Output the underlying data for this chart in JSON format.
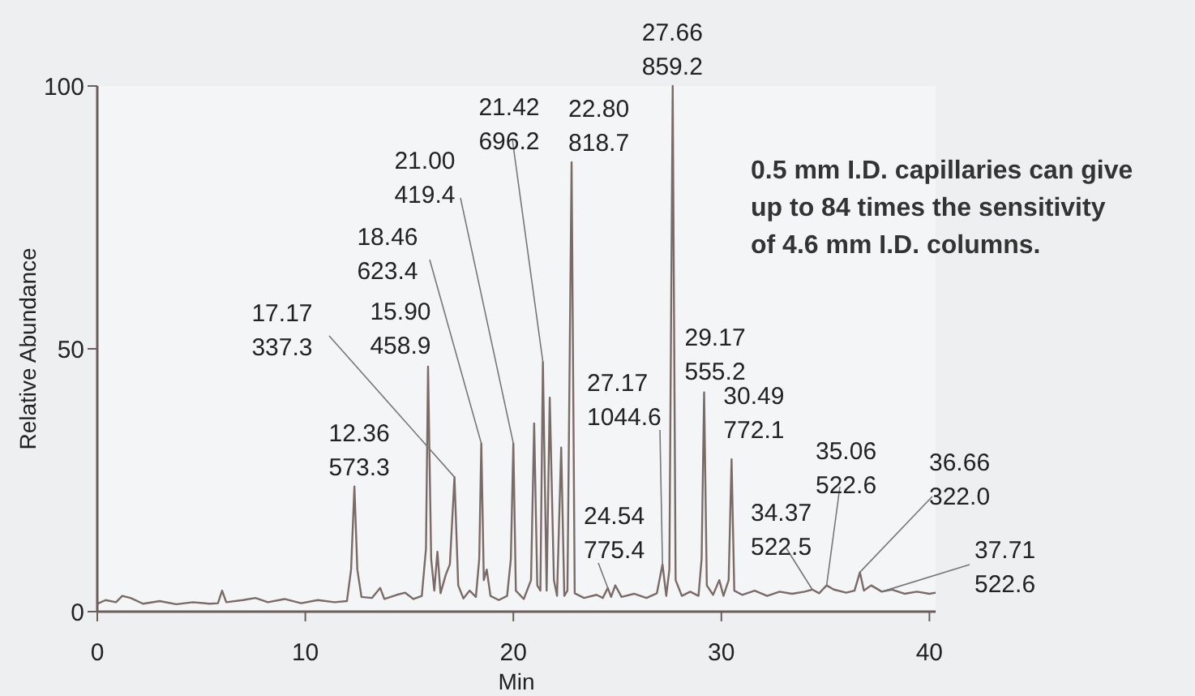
{
  "chart_data": {
    "type": "line",
    "xlabel": "Min",
    "ylabel": "Relative Abundance",
    "xlim": [
      0,
      40.3
    ],
    "xticks": [
      0,
      10,
      20,
      30,
      40
    ],
    "ylim": [
      0,
      100
    ],
    "yticks": [
      0,
      50,
      100
    ],
    "series": [
      {
        "color": "#7a6a68",
        "x": [
          0,
          0.4,
          0.9,
          1.2,
          1.6,
          2.2,
          3,
          3.8,
          4.6,
          5.4,
          5.8,
          6.0,
          6.2,
          7,
          7.6,
          8.2,
          9,
          9.8,
          10.6,
          11.4,
          12.0,
          12.2,
          12.36,
          12.5,
          12.7,
          13.2,
          13.6,
          13.8,
          14.4,
          14.8,
          15.2,
          15.6,
          15.8,
          15.9,
          16.05,
          16.2,
          16.35,
          16.5,
          16.75,
          16.95,
          17.17,
          17.35,
          17.6,
          17.9,
          18.2,
          18.36,
          18.46,
          18.58,
          18.72,
          18.9,
          19.3,
          19.7,
          19.88,
          20.0,
          20.12,
          20.5,
          20.85,
          21.0,
          21.15,
          21.3,
          21.42,
          21.6,
          21.75,
          21.95,
          22.1,
          22.3,
          22.45,
          22.6,
          22.8,
          22.95,
          23.4,
          24.0,
          24.3,
          24.54,
          24.7,
          24.9,
          25.2,
          25.8,
          26.4,
          26.9,
          27.17,
          27.35,
          27.5,
          27.66,
          27.8,
          28.1,
          28.5,
          28.9,
          29.05,
          29.17,
          29.3,
          29.6,
          29.9,
          30.1,
          30.35,
          30.49,
          30.62,
          31.0,
          31.6,
          32.2,
          32.8,
          33.4,
          34.0,
          34.37,
          34.7,
          35.06,
          35.4,
          36.0,
          36.4,
          36.66,
          36.85,
          37.2,
          37.71,
          38.2,
          38.8,
          39.4,
          40.0,
          40.3
        ],
        "values": [
          1.5,
          2.2,
          1.8,
          3.0,
          2.6,
          1.5,
          2.0,
          1.4,
          1.8,
          1.5,
          1.6,
          4.0,
          1.8,
          2.2,
          2.6,
          1.8,
          2.4,
          1.6,
          2.2,
          1.8,
          2.0,
          8,
          23.8,
          8,
          2.8,
          2.6,
          4.5,
          2.4,
          3.2,
          3.6,
          2.4,
          3.0,
          12,
          46.6,
          10,
          4,
          11.4,
          3.5,
          7,
          9,
          25.6,
          5,
          2.5,
          4,
          2.8,
          10,
          32,
          6,
          8,
          3,
          2.2,
          3,
          10,
          32,
          4,
          2.4,
          6,
          35.8,
          5,
          4,
          47.5,
          4,
          40.7,
          6,
          3,
          31.2,
          3,
          4,
          85.5,
          3.5,
          2.6,
          3.2,
          2.6,
          4.5,
          2.8,
          5,
          2.8,
          3.4,
          2.6,
          3.5,
          9,
          3,
          8,
          100,
          6,
          3,
          3.8,
          3,
          10,
          41.7,
          5,
          3.2,
          6,
          3,
          6,
          29,
          4,
          3.2,
          4,
          3,
          3.8,
          3.4,
          3.8,
          4.2,
          3.5,
          5,
          4.2,
          3.6,
          4,
          7.5,
          4,
          5,
          3.8,
          4.2,
          3.4,
          3.8,
          3.4,
          3.6
        ]
      }
    ],
    "annotations": [
      {
        "text": "12.36\n573.3",
        "x": 12.36,
        "y": 23.8
      },
      {
        "text": "15.90\n458.9",
        "x": 15.9,
        "y": 46.6
      },
      {
        "text": "17.17\n337.3",
        "x": 17.17,
        "y": 25.6
      },
      {
        "text": "18.46\n623.4",
        "x": 18.46,
        "y": 32
      },
      {
        "text": "21.00\n419.4",
        "x": 20.0,
        "y": 32
      },
      {
        "text": "21.42\n696.2",
        "x": 21.42,
        "y": 47.5
      },
      {
        "text": "22.80\n818.7",
        "x": 22.8,
        "y": 85.5
      },
      {
        "text": "24.54\n775.4",
        "x": 24.54,
        "y": 4.5
      },
      {
        "text": "27.17\n1044.6",
        "x": 27.17,
        "y": 9
      },
      {
        "text": "27.66\n859.2",
        "x": 27.66,
        "y": 100
      },
      {
        "text": "29.17\n555.2",
        "x": 29.17,
        "y": 41.7
      },
      {
        "text": "30.49\n772.1",
        "x": 30.49,
        "y": 29
      },
      {
        "text": "34.37\n522.5",
        "x": 34.37,
        "y": 4.2
      },
      {
        "text": "35.06\n522.6",
        "x": 35.06,
        "y": 5
      },
      {
        "text": "36.66\n322.0",
        "x": 36.66,
        "y": 7.5
      },
      {
        "text": "37.71\n522.6",
        "x": 37.71,
        "y": 3.8
      },
      "0.5 mm I.D. capillaries can give\nup to 84 times the sensitivity\nof 4.6 mm I.D. columns."
    ]
  }
}
